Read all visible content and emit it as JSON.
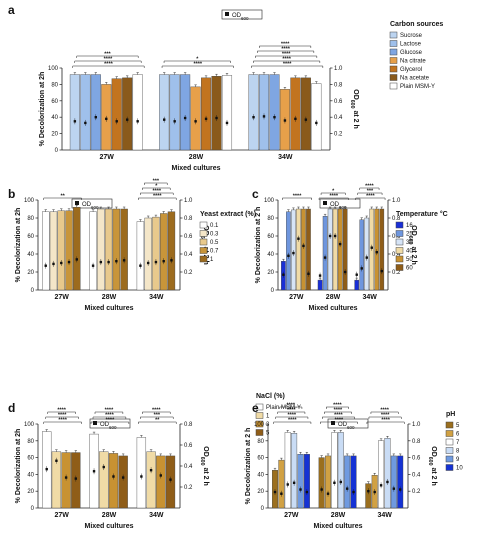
{
  "figure": {
    "panels": [
      {
        "letter": "a"
      },
      {
        "letter": "b"
      },
      {
        "letter": "c"
      },
      {
        "letter": "d"
      },
      {
        "letter": "e"
      }
    ]
  },
  "chart_data": [
    {
      "panel": "a",
      "type": "bar",
      "title": "",
      "xlabel": "Mixed cultures",
      "ylabel": "% Decolorization at 2h",
      "y2label": "OD600 at 2 h",
      "od_legend": "OD600",
      "legend_title": "Carbon sources",
      "legend_position": "right",
      "categories": [
        "27W",
        "28W",
        "34W"
      ],
      "ylim": [
        0,
        100
      ],
      "y2lim": [
        0,
        1.0
      ],
      "yticks": [
        "0",
        "20",
        "40",
        "60",
        "80",
        "100"
      ],
      "y2ticks": [
        "0.2",
        "0.4",
        "0.6",
        "0.8",
        "1.0"
      ],
      "series": [
        {
          "name": "Sucrose",
          "color": "#bcd4f0",
          "values": [
            92,
            92,
            92
          ],
          "od": [
            0.35,
            0.37,
            0.4
          ]
        },
        {
          "name": "Lactose",
          "color": "#9fc0eb",
          "values": [
            92,
            92,
            92
          ],
          "od": [
            0.33,
            0.35,
            0.41
          ]
        },
        {
          "name": "Glucose",
          "color": "#7fa6e2",
          "values": [
            92,
            92,
            92
          ],
          "od": [
            0.4,
            0.39,
            0.4
          ]
        },
        {
          "name": "Na citrate",
          "color": "#e7a04a",
          "values": [
            80,
            77,
            74
          ],
          "od": [
            0.38,
            0.35,
            0.36
          ]
        },
        {
          "name": "Glycerol",
          "color": "#c2741f",
          "values": [
            87,
            88,
            88
          ],
          "od": [
            0.35,
            0.38,
            0.38
          ]
        },
        {
          "name": "Na acetate",
          "color": "#8a5a1b",
          "values": [
            88,
            90,
            88
          ],
          "od": [
            0.37,
            0.39,
            0.37
          ]
        },
        {
          "name": "Plain MSM-Y",
          "color": "#ffffff",
          "values": [
            92,
            91,
            81
          ],
          "od": [
            0.35,
            0.33,
            0.33
          ]
        }
      ],
      "significance": [
        {
          "category": "27W",
          "labels": [
            "****",
            "****",
            "***"
          ]
        },
        {
          "category": "28W",
          "labels": [
            "****",
            "*"
          ]
        },
        {
          "category": "34W",
          "labels": [
            "****",
            "****",
            "****",
            "****",
            "****"
          ]
        }
      ]
    },
    {
      "panel": "b",
      "type": "bar",
      "title": "",
      "xlabel": "Mixed cultures",
      "ylabel": "% Decolorization at 2h",
      "y2label": "OD600 at 2 h",
      "od_legend": "OD600",
      "legend_title": "Yeast extract (%)",
      "legend_position": "right",
      "categories": [
        "27W",
        "28W",
        "34W"
      ],
      "ylim": [
        0,
        100
      ],
      "y2lim": [
        0,
        1.0
      ],
      "yticks": [
        "0",
        "20",
        "40",
        "60",
        "80",
        "100"
      ],
      "y2ticks": [
        "0.2",
        "0.4",
        "0.6",
        "0.8",
        "1.0"
      ],
      "series": [
        {
          "name": "0.1",
          "color": "#ffffff",
          "values": [
            87,
            87,
            76
          ],
          "od": [
            0.27,
            0.27,
            0.27
          ]
        },
        {
          "name": "0.3",
          "color": "#f4e6c8",
          "values": [
            87,
            90,
            80
          ],
          "od": [
            0.29,
            0.31,
            0.3
          ]
        },
        {
          "name": "0.5",
          "color": "#e8c98c",
          "values": [
            88,
            90,
            81
          ],
          "od": [
            0.3,
            0.31,
            0.31
          ]
        },
        {
          "name": "0.7",
          "color": "#c8953a",
          "values": [
            88,
            90,
            85
          ],
          "od": [
            0.31,
            0.32,
            0.32
          ]
        },
        {
          "name": "1",
          "color": "#9c6b1e",
          "values": [
            92,
            90,
            87
          ],
          "od": [
            0.34,
            0.33,
            0.33
          ]
        }
      ],
      "significance": [
        {
          "category": "27W",
          "labels": [
            "**"
          ]
        },
        {
          "category": "34W",
          "labels": [
            "****",
            "****",
            "*",
            "***"
          ]
        }
      ]
    },
    {
      "panel": "c",
      "type": "bar",
      "title": "",
      "xlabel": "Mixed cultures",
      "ylabel": "% Decolorization at 2 h",
      "y2label": "OD600 at 2 h",
      "od_legend": "OD600",
      "legend_title": "Temperature °C",
      "legend_position": "right",
      "categories": [
        "27W",
        "28W",
        "34W"
      ],
      "ylim": [
        0,
        100
      ],
      "y2lim": [
        0,
        1.0
      ],
      "yticks": [
        "0",
        "20",
        "40",
        "60",
        "80",
        "100"
      ],
      "y2ticks": [
        "0.2",
        "0.4",
        "0.6",
        "0.8",
        "1.0"
      ],
      "series": [
        {
          "name": "16",
          "color": "#1a2fd6",
          "values": [
            32,
            11,
            11
          ],
          "od": [
            0.17,
            0.16,
            0.17
          ]
        },
        {
          "name": "25",
          "color": "#6e96de",
          "values": [
            87,
            82,
            78
          ],
          "od": [
            0.38,
            0.36,
            0.24
          ]
        },
        {
          "name": "30",
          "color": "#d6e4f6",
          "values": [
            89,
            90,
            80
          ],
          "od": [
            0.41,
            0.6,
            0.36
          ]
        },
        {
          "name": "40",
          "color": "#f0dba6",
          "values": [
            90,
            90,
            90
          ],
          "od": [
            0.57,
            0.6,
            0.47
          ]
        },
        {
          "name": "50",
          "color": "#c89232",
          "values": [
            90,
            90,
            90
          ],
          "od": [
            0.49,
            0.51,
            0.42
          ]
        },
        {
          "name": "60",
          "color": "#8f5d18",
          "values": [
            90,
            90,
            90
          ],
          "od": [
            0.18,
            0.2,
            0.21
          ]
        }
      ],
      "significance": [
        {
          "category": "27W",
          "labels": [
            "****"
          ]
        },
        {
          "category": "28W",
          "labels": [
            "****",
            "*"
          ]
        },
        {
          "category": "34W",
          "labels": [
            "****",
            "***",
            "****"
          ]
        }
      ]
    },
    {
      "panel": "d",
      "type": "bar",
      "title": "",
      "xlabel": "Mixed cultures",
      "ylabel": "% Decolorization at 2h",
      "y2label": "OD600 at 2 h",
      "od_legend": "OD600",
      "legend_title": "NaCl (%)",
      "legend_position": "right",
      "categories": [
        "27W",
        "28W",
        "34W"
      ],
      "ylim": [
        0,
        100
      ],
      "y2lim": [
        0,
        0.8
      ],
      "yticks": [
        "0",
        "20",
        "40",
        "60",
        "80",
        "100"
      ],
      "y2ticks": [
        "0.2",
        "0.4",
        "0.6",
        "0.8"
      ],
      "series": [
        {
          "name": "Plain MSM-Y",
          "color": "#ffffff",
          "values": [
            91,
            88,
            84
          ],
          "od": [
            0.37,
            0.35,
            0.3
          ]
        },
        {
          "name": "1",
          "color": "#f0dba6",
          "values": [
            67,
            67,
            67
          ],
          "od": [
            0.45,
            0.39,
            0.36
          ]
        },
        {
          "name": "3",
          "color": "#c89232",
          "values": [
            66,
            65,
            62
          ],
          "od": [
            0.29,
            0.3,
            0.31
          ]
        },
        {
          "name": "5",
          "color": "#8f5d18",
          "values": [
            66,
            62,
            62
          ],
          "od": [
            0.28,
            0.29,
            0.27
          ]
        }
      ],
      "significance": [
        {
          "category": "27W",
          "labels": [
            "****",
            "****",
            "****"
          ]
        },
        {
          "category": "28W",
          "labels": [
            "****",
            "****",
            "****"
          ]
        },
        {
          "category": "34W",
          "labels": [
            "**",
            "***",
            "****"
          ]
        }
      ]
    },
    {
      "panel": "e",
      "type": "bar",
      "title": "",
      "xlabel": "Mixed cultures",
      "ylabel": "% Decolorization at 2 h",
      "y2label": "OD600 at 2 h",
      "od_legend": "OD600",
      "legend_title": "pH",
      "legend_position": "right",
      "categories": [
        "27W",
        "28W",
        "34W"
      ],
      "ylim": [
        0,
        100
      ],
      "y2lim": [
        0,
        1.0
      ],
      "yticks": [
        "0",
        "20",
        "40",
        "60",
        "80",
        "100"
      ],
      "y2ticks": [
        "0.2",
        "0.4",
        "0.6",
        "0.8",
        "1.0"
      ],
      "series": [
        {
          "name": "5",
          "color": "#9b6f1e",
          "values": [
            45,
            60,
            29
          ],
          "od": [
            0.19,
            0.22,
            0.2
          ]
        },
        {
          "name": "6",
          "color": "#d1a143",
          "values": [
            57,
            62,
            39
          ],
          "od": [
            0.17,
            0.17,
            0.19
          ]
        },
        {
          "name": "7",
          "color": "#ffffff",
          "values": [
            90,
            90,
            80
          ],
          "od": [
            0.28,
            0.3,
            0.27
          ]
        },
        {
          "name": "8",
          "color": "#c9dcf5",
          "values": [
            89,
            90,
            83
          ],
          "od": [
            0.3,
            0.31,
            0.31
          ]
        },
        {
          "name": "9",
          "color": "#6f9ae0",
          "values": [
            64,
            62,
            62
          ],
          "od": [
            0.22,
            0.23,
            0.23
          ]
        },
        {
          "name": "10",
          "color": "#1532d4",
          "values": [
            64,
            62,
            62
          ],
          "od": [
            0.19,
            0.19,
            0.22
          ]
        }
      ],
      "significance": [
        {
          "category": "27W",
          "labels": [
            "****",
            "****",
            "****",
            "****"
          ]
        },
        {
          "category": "28W",
          "labels": [
            "****",
            "****",
            "****",
            "****"
          ]
        },
        {
          "category": "34W",
          "labels": [
            "****",
            "****",
            "****"
          ]
        }
      ]
    }
  ]
}
